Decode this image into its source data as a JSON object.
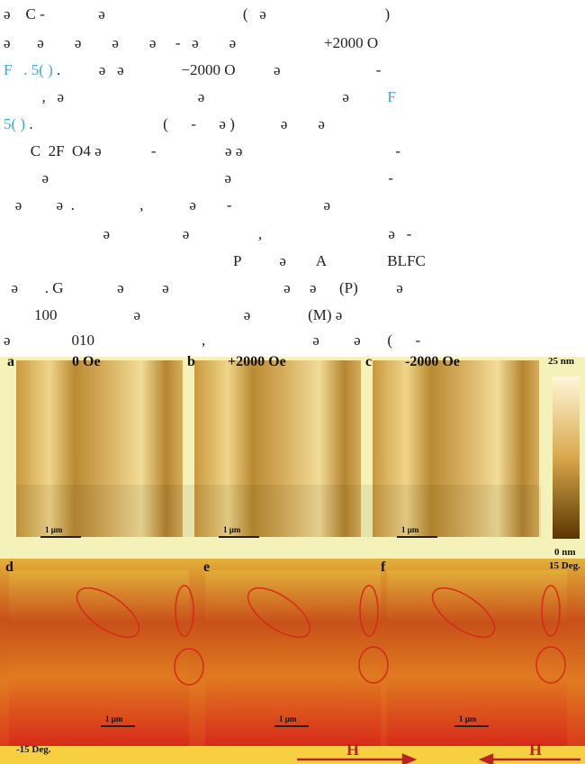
{
  "text": {
    "lines": [
      [
        "ə    C -              ə                                    (   ə                               )"
      ],
      [
        "ə       ə        ə        ə        ə     -   ə        ə                       +2000 O"
      ],
      [
        "F   . 5( )",
        " .          ə   ə               −2000 O          ə                         -"
      ],
      [
        "          ,   ə                                   ə                                    ə          ",
        "F"
      ],
      [
        "5( )",
        " .                                  (      -      ə )            ə        ə"
      ],
      [
        "       C  2F  O4 ə             -                  ə ə                                        -"
      ],
      [
        "          ə                                              ə                                         -"
      ],
      [
        "   ə         ə  .                 ,            ə        -                        ə"
      ],
      [
        "                          ə                   ə                  ,                                 ə   -"
      ],
      [
        "                                                            P          ə        A                BLFC"
      ],
      [
        "  ə       . G              ə          ə                              ə     ə      (P)          ə"
      ],
      [
        "        100                    ə                           ə               (M) ə"
      ],
      [
        "ə                010                            ,                            ə         ə       (      -"
      ]
    ]
  },
  "figure": {
    "panels": [
      "a",
      "b",
      "c",
      "d",
      "e",
      "f"
    ],
    "fields": [
      "0 Oe",
      "+2000 Oe",
      "-2000 Oe"
    ],
    "height_scale": [
      "25 nm",
      "0 nm"
    ],
    "phase_scale": [
      "15 Deg.",
      "-15 Deg."
    ],
    "scale_bar": "1 μm",
    "field_arrow": "H"
  }
}
